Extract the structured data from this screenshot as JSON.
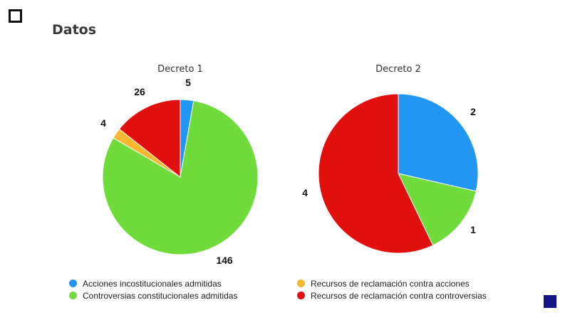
{
  "page": {
    "title": "Datos"
  },
  "legend": [
    {
      "label": "Acciones incostitucionales admitidas",
      "color": "#2196f3"
    },
    {
      "label": "Controversias constitucionales admitidas",
      "color": "#6fdc3c"
    },
    {
      "label": "Recursos de reclamación contra acciones",
      "color": "#f5b82e"
    },
    {
      "label": "Recursos de reclamación contra controversias",
      "color": "#e20f0f"
    }
  ],
  "chart_data": [
    {
      "type": "pie",
      "title": "Decreto 1",
      "categories": [
        "Acciones incostitucionales admitidas",
        "Controversias constitucionales admitidas",
        "Recursos de reclamación contra acciones",
        "Recursos de reclamación contra controversias"
      ],
      "values": [
        5,
        146,
        4,
        26
      ],
      "colors": [
        "#2196f3",
        "#6fdc3c",
        "#f5b82e",
        "#e20f0f"
      ]
    },
    {
      "type": "pie",
      "title": "Decreto 2",
      "categories": [
        "Acciones incostitucionales admitidas",
        "Controversias constitucionales admitidas",
        "Recursos de reclamación contra acciones",
        "Recursos de reclamación contra controversias"
      ],
      "values": [
        2,
        1,
        0,
        4
      ],
      "colors": [
        "#2196f3",
        "#6fdc3c",
        "#f5b82e",
        "#e20f0f"
      ]
    }
  ],
  "colors": {
    "nav_square": "#15158a",
    "title_text": "#3a3a3a"
  }
}
